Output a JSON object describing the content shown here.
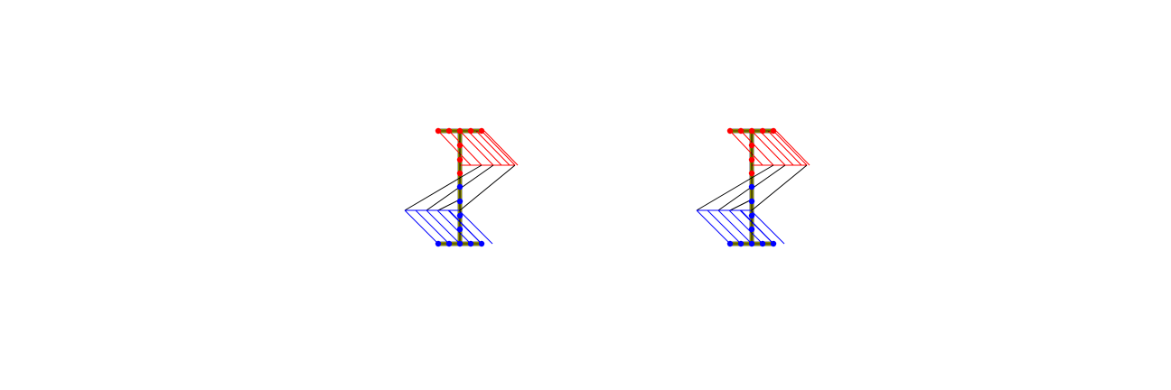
{
  "figure": {
    "panel_count": 2,
    "colors": {
      "top_nodes": "#ff0000",
      "bottom_nodes": "#0000ff",
      "web": "#000000",
      "flange_band": "#c8c800",
      "compression_hatch": "#ff0000",
      "tension_hatch": "#0000ff",
      "neutral_hatch": "#000000",
      "background": "#ffffff"
    }
  }
}
